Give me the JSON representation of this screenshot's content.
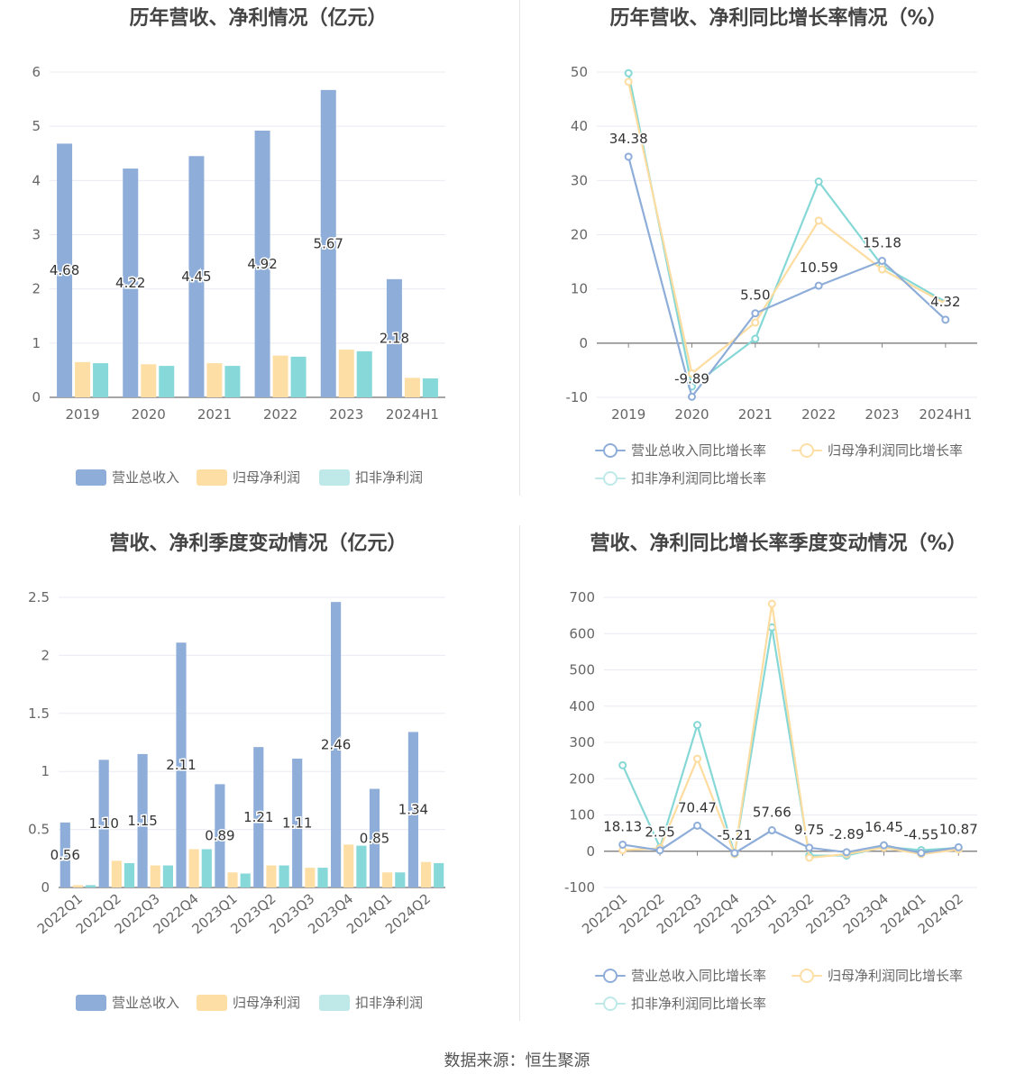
{
  "colors": {
    "revenue": "#8eadd9",
    "netprofit": "#fddfa5",
    "deducted": "#87d8d8",
    "revenue_line": "#8eadd9",
    "netprofit_line": "#fddca0",
    "deducted_line": "#86d8d6"
  },
  "legend": {
    "revenue": "营业总收入",
    "netprofit": "归母净利润",
    "deducted": "扣非净利润",
    "revenue_growth": "营业总收入同比增长率",
    "netprofit_growth": "归母净利润同比增长率",
    "deducted_growth": "扣非净利润同比增长率"
  },
  "source": "数据来源：恒生聚源",
  "chart_data": [
    {
      "type": "bar",
      "title": "历年营收、净利情况（亿元）",
      "categories": [
        "2019",
        "2020",
        "2021",
        "2022",
        "2023",
        "2024H1"
      ],
      "ylim": [
        0,
        6
      ],
      "yticks": [
        0,
        1,
        2,
        3,
        4,
        5,
        6
      ],
      "series": [
        {
          "name": "营业总收入",
          "values": [
            4.68,
            4.22,
            4.45,
            4.92,
            5.67,
            2.18
          ]
        },
        {
          "name": "归母净利润",
          "values": [
            0.65,
            0.61,
            0.63,
            0.77,
            0.88,
            0.36
          ]
        },
        {
          "name": "扣非净利润",
          "values": [
            0.63,
            0.58,
            0.58,
            0.75,
            0.85,
            0.35
          ]
        }
      ],
      "labels": [
        "4.68",
        "4.22",
        "4.45",
        "4.92",
        "5.67",
        "2.18"
      ],
      "grid": true,
      "legend_position": "bottom"
    },
    {
      "type": "line",
      "title": "历年营收、净利同比增长率情况（%）",
      "categories": [
        "2019",
        "2020",
        "2021",
        "2022",
        "2023",
        "2024H1"
      ],
      "ylim": [
        -10,
        50
      ],
      "yticks": [
        -10,
        0,
        10,
        20,
        30,
        40,
        50
      ],
      "series": [
        {
          "name": "营业总收入同比增长率",
          "values": [
            34.38,
            -9.89,
            5.5,
            10.59,
            15.18,
            4.32
          ]
        },
        {
          "name": "归母净利润同比增长率",
          "values": [
            48.2,
            -5.6,
            3.8,
            22.6,
            13.6,
            7.3
          ]
        },
        {
          "name": "扣非净利润同比增长率",
          "values": [
            49.8,
            -8.0,
            0.8,
            29.8,
            14.3,
            7.6
          ]
        }
      ],
      "labels": [
        "34.38",
        "-9.89",
        "5.50",
        "10.59",
        "15.18",
        "4.32"
      ],
      "grid": true,
      "legend_position": "bottom"
    },
    {
      "type": "bar",
      "title": "营收、净利季度变动情况（亿元）",
      "categories": [
        "2022Q1",
        "2022Q2",
        "2022Q3",
        "2022Q4",
        "2023Q1",
        "2023Q2",
        "2023Q3",
        "2023Q4",
        "2024Q1",
        "2024Q2"
      ],
      "ylim": [
        0,
        2.5
      ],
      "yticks": [
        0,
        0.5,
        1,
        1.5,
        2,
        2.5
      ],
      "series": [
        {
          "name": "营业总收入",
          "values": [
            0.56,
            1.1,
            1.15,
            2.11,
            0.89,
            1.21,
            1.11,
            2.46,
            0.85,
            1.34
          ]
        },
        {
          "name": "归母净利润",
          "values": [
            0.02,
            0.23,
            0.19,
            0.33,
            0.13,
            0.19,
            0.17,
            0.37,
            0.13,
            0.22
          ]
        },
        {
          "name": "扣非净利润",
          "values": [
            0.02,
            0.21,
            0.19,
            0.33,
            0.12,
            0.19,
            0.17,
            0.36,
            0.13,
            0.21
          ]
        }
      ],
      "labels": [
        "0.56",
        "1.10",
        "1.15",
        "2.11",
        "0.89",
        "1.21",
        "1.11",
        "2.46",
        "0.85",
        "1.34"
      ],
      "grid": true,
      "legend_position": "bottom"
    },
    {
      "type": "line",
      "title": "营收、净利同比增长率季度变动情况（%）",
      "categories": [
        "2022Q1",
        "2022Q2",
        "2022Q3",
        "2022Q4",
        "2023Q1",
        "2023Q2",
        "2023Q3",
        "2023Q4",
        "2024Q1",
        "2024Q2"
      ],
      "ylim": [
        -100,
        700
      ],
      "yticks": [
        -100,
        0,
        100,
        200,
        300,
        400,
        500,
        600,
        700
      ],
      "series": [
        {
          "name": "营业总收入同比增长率",
          "values": [
            18.13,
            2.55,
            70.47,
            -5.21,
            57.66,
            9.75,
            -2.89,
            16.45,
            -4.55,
            10.87
          ]
        },
        {
          "name": "归母净利润同比增长率",
          "values": [
            3,
            8,
            255,
            -8,
            682,
            -18,
            -8,
            10,
            -8,
            5
          ]
        },
        {
          "name": "扣非净利润同比增长率",
          "values": [
            237,
            10,
            348,
            -8,
            617,
            -12,
            -12,
            12,
            3,
            9
          ]
        }
      ],
      "labels": [
        "18.13",
        "2.55",
        "70.47",
        "-5.21",
        "57.66",
        "9.75",
        "-2.89",
        "16.45",
        "-4.55",
        "10.87"
      ],
      "grid": true,
      "legend_position": "bottom"
    }
  ]
}
